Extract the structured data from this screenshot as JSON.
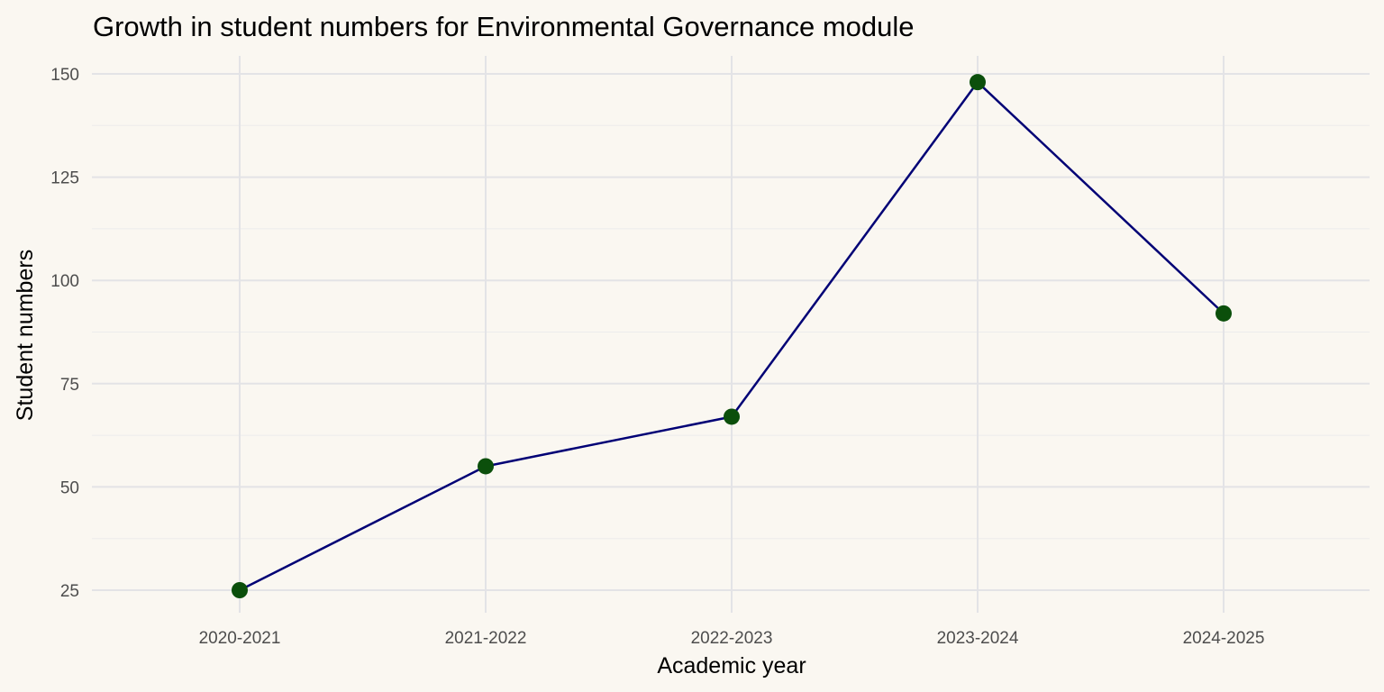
{
  "chart_data": {
    "type": "line",
    "title": "Growth in student numbers for Environmental Governance module",
    "xlabel": "Academic year",
    "ylabel": "Student numbers",
    "categories": [
      "2020-2021",
      "2021-2022",
      "2022-2023",
      "2023-2024",
      "2024-2025"
    ],
    "series": [
      {
        "values": [
          25,
          55,
          67,
          148,
          92
        ],
        "line_color": "#000075",
        "point_color": "#0b4f0b"
      }
    ],
    "ylim": [
      20,
      154
    ],
    "yticks": [
      25,
      50,
      75,
      100,
      125,
      150
    ],
    "grid": true,
    "legend": "none"
  },
  "colors": {
    "background": "#faf7f1",
    "grid": "#e3e3e6"
  }
}
